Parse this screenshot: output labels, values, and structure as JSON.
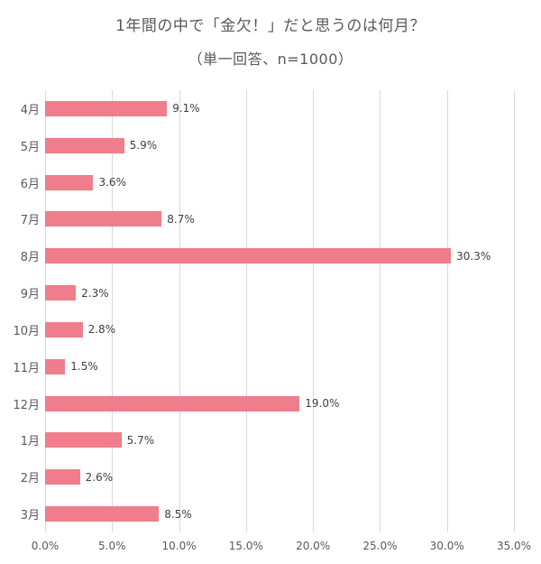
{
  "chart_data": {
    "type": "bar",
    "orientation": "horizontal",
    "title": "1年間の中で「金欠！」だと思うのは何月？",
    "subtitle": "（単一回答、n=1000）",
    "categories": [
      "4月",
      "5月",
      "6月",
      "7月",
      "8月",
      "9月",
      "10月",
      "11月",
      "12月",
      "1月",
      "2月",
      "3月"
    ],
    "values": [
      9.1,
      5.9,
      3.6,
      8.7,
      30.3,
      2.3,
      2.8,
      1.5,
      19.0,
      5.7,
      2.6,
      8.5
    ],
    "value_labels": [
      "9.1%",
      "5.9%",
      "3.6%",
      "8.7%",
      "30.3%",
      "2.3%",
      "2.8%",
      "1.5%",
      "19.0%",
      "5.7%",
      "2.6%",
      "8.5%"
    ],
    "xlabel": "",
    "ylabel": "",
    "xlim": [
      0,
      35
    ],
    "x_ticks": [
      "0.0%",
      "5.0%",
      "10.0%",
      "15.0%",
      "20.0%",
      "25.0%",
      "30.0%",
      "35.0%"
    ],
    "bar_color": "#ef7d8c",
    "gridline_color": "#d9d9d9",
    "grid": true,
    "legend": false
  }
}
